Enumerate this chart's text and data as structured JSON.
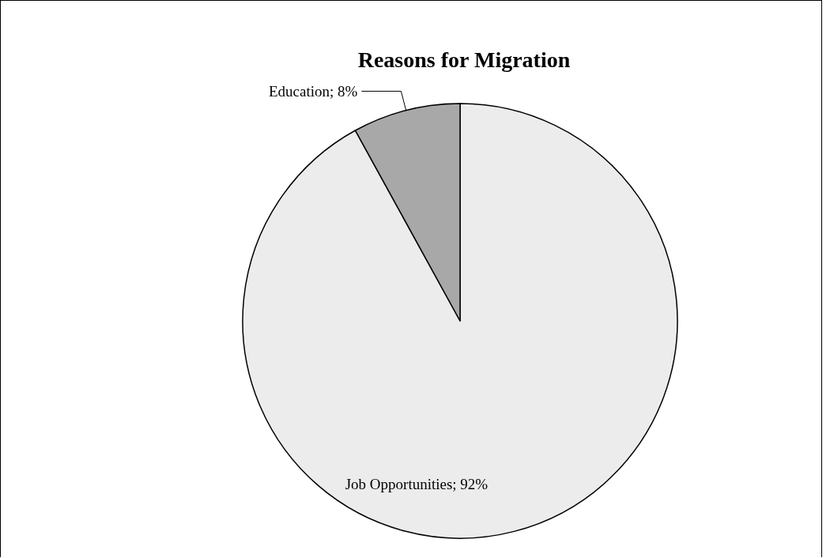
{
  "chart_data": {
    "type": "pie",
    "title": "Reasons for Migration",
    "categories": [
      "Job Opportunities",
      "Education"
    ],
    "values": [
      92,
      8
    ],
    "value_labels": [
      "92%",
      "8%"
    ],
    "colors": [
      "#ececec",
      "#a8a8a8"
    ]
  }
}
